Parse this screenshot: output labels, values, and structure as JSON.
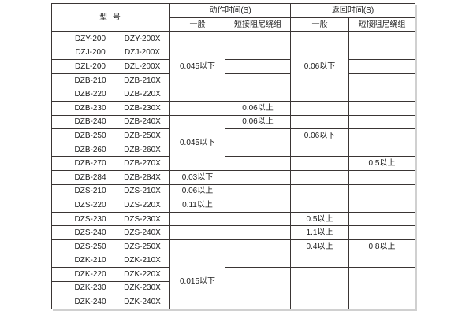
{
  "table": {
    "title_note": "relay operate/return time specification table",
    "header": {
      "model_label": "型  号",
      "action_time_label": "动作时间(S)",
      "return_time_label": "返回时间(S)",
      "general_label": "一般",
      "damped_label": "短接阻尼绕组"
    },
    "colors": {
      "border": "#3a3534",
      "text": "#1b1b1b",
      "background": "#ffffff"
    },
    "rows": [
      {
        "model_a": "DZY-200",
        "model_b": "DZY-200X",
        "cells": [
          {
            "col": "action-general",
            "rowspan": 5,
            "text": "0.045以下"
          },
          {
            "col": "action-damped",
            "text": ""
          },
          {
            "col": "return-general",
            "rowspan": 5,
            "text": "0.06以下"
          },
          {
            "col": "return-damped",
            "text": ""
          }
        ]
      },
      {
        "model_a": "DZJ-200",
        "model_b": "DZJ-200X",
        "cells": [
          {
            "col": "action-damped",
            "text": ""
          },
          {
            "col": "return-damped",
            "text": ""
          }
        ]
      },
      {
        "model_a": "DZL-200",
        "model_b": "DZL-200X",
        "cells": [
          {
            "col": "action-damped",
            "text": ""
          },
          {
            "col": "return-damped",
            "text": ""
          }
        ]
      },
      {
        "model_a": "DZB-210",
        "model_b": "DZB-210X",
        "cells": [
          {
            "col": "action-damped",
            "text": ""
          },
          {
            "col": "return-damped",
            "text": ""
          }
        ]
      },
      {
        "model_a": "DZB-220",
        "model_b": "DZB-220X",
        "cells": [
          {
            "col": "action-damped",
            "text": ""
          },
          {
            "col": "return-damped",
            "text": ""
          }
        ]
      },
      {
        "model_a": "DZB-230",
        "model_b": "DZB-230X",
        "cells": [
          {
            "col": "action-general",
            "text": ""
          },
          {
            "col": "action-damped",
            "text": "0.06以上"
          },
          {
            "col": "return-general",
            "text": ""
          },
          {
            "col": "return-damped",
            "text": ""
          }
        ]
      },
      {
        "model_a": "DZB-240",
        "model_b": "DZB-240X",
        "cells": [
          {
            "col": "action-general",
            "rowspan": 4,
            "text": "0.045以下"
          },
          {
            "col": "action-damped",
            "text": "0.06以上"
          },
          {
            "col": "return-general",
            "text": ""
          },
          {
            "col": "return-damped",
            "text": ""
          }
        ]
      },
      {
        "model_a": "DZB-250",
        "model_b": "DZB-250X",
        "cells": [
          {
            "col": "action-damped",
            "text": ""
          },
          {
            "col": "return-general",
            "text": "0.06以下"
          },
          {
            "col": "return-damped",
            "text": ""
          }
        ]
      },
      {
        "model_a": "DZB-260",
        "model_b": "DZB-260X",
        "cells": [
          {
            "col": "action-damped",
            "text": ""
          },
          {
            "col": "return-general",
            "text": ""
          },
          {
            "col": "return-damped",
            "text": ""
          }
        ]
      },
      {
        "model_a": "DZB-270",
        "model_b": "DZB-270X",
        "cells": [
          {
            "col": "action-damped",
            "text": ""
          },
          {
            "col": "return-general",
            "text": ""
          },
          {
            "col": "return-damped",
            "text": "0.5以上"
          }
        ]
      },
      {
        "model_a": "DZB-284",
        "model_b": "DZB-284X",
        "cells": [
          {
            "col": "action-general",
            "text": "0.03以下"
          },
          {
            "col": "action-damped",
            "text": ""
          },
          {
            "col": "return-general",
            "text": ""
          },
          {
            "col": "return-damped",
            "text": ""
          }
        ]
      },
      {
        "model_a": "DZS-210",
        "model_b": "DZS-210X",
        "cells": [
          {
            "col": "action-general",
            "text": "0.06以上"
          },
          {
            "col": "action-damped",
            "text": ""
          },
          {
            "col": "return-general",
            "text": ""
          },
          {
            "col": "return-damped",
            "text": ""
          }
        ]
      },
      {
        "model_a": "DZS-220",
        "model_b": "DZS-220X",
        "cells": [
          {
            "col": "action-general",
            "text": "0.11以上"
          },
          {
            "col": "action-damped",
            "text": ""
          },
          {
            "col": "return-general",
            "text": ""
          },
          {
            "col": "return-damped",
            "text": ""
          }
        ]
      },
      {
        "model_a": "DZS-230",
        "model_b": "DZS-230X",
        "cells": [
          {
            "col": "action-general",
            "text": ""
          },
          {
            "col": "action-damped",
            "text": ""
          },
          {
            "col": "return-general",
            "text": "0.5以上"
          },
          {
            "col": "return-damped",
            "text": ""
          }
        ]
      },
      {
        "model_a": "DZS-240",
        "model_b": "DZS-240X",
        "cells": [
          {
            "col": "action-general",
            "text": ""
          },
          {
            "col": "action-damped",
            "text": ""
          },
          {
            "col": "return-general",
            "text": "1.1以上"
          },
          {
            "col": "return-damped",
            "text": ""
          }
        ]
      },
      {
        "model_a": "DZS-250",
        "model_b": "DZS-250X",
        "cells": [
          {
            "col": "action-general",
            "text": ""
          },
          {
            "col": "action-damped",
            "text": ""
          },
          {
            "col": "return-general",
            "text": "0.4以上"
          },
          {
            "col": "return-damped",
            "text": "0.8以上"
          }
        ]
      },
      {
        "model_a": "DZK-210",
        "model_b": "DZK-210X",
        "cells": [
          {
            "col": "action-general",
            "rowspan": 4,
            "text": "0.015以下"
          },
          {
            "col": "action-damped",
            "text": ""
          },
          {
            "col": "return-general",
            "text": ""
          },
          {
            "col": "return-damped",
            "text": ""
          }
        ]
      },
      {
        "model_a": "DZK-220",
        "model_b": "DZK-220X",
        "cells": [
          {
            "col": "action-damped",
            "rowspan": 3,
            "text": ""
          },
          {
            "col": "return-general",
            "rowspan": 3,
            "text": ""
          },
          {
            "col": "return-damped",
            "rowspan": 3,
            "text": ""
          }
        ]
      },
      {
        "model_a": "DZK-230",
        "model_b": "DZK-230X",
        "cells": []
      },
      {
        "model_a": "DZK-240",
        "model_b": "DZK-240X",
        "cells": []
      }
    ]
  }
}
